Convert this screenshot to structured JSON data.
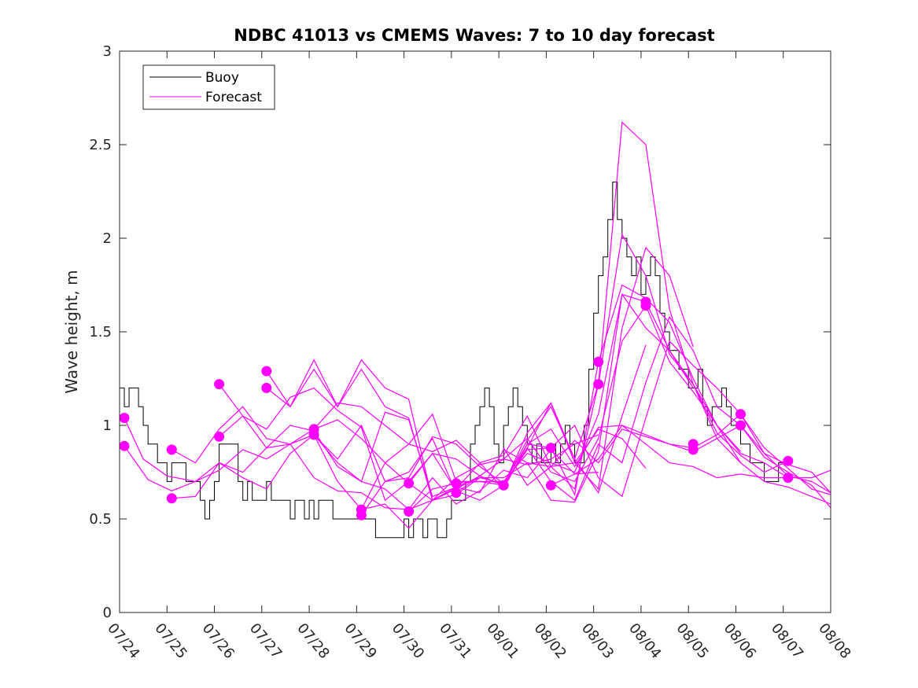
{
  "chart_data": {
    "type": "line",
    "title": "NDBC 41013 vs CMEMS Waves: 7 to 10 day forecast",
    "xlabel": "",
    "ylabel": "Wave height, m",
    "x_ticks": [
      "07/24",
      "07/25",
      "07/26",
      "07/27",
      "07/28",
      "07/29",
      "07/30",
      "07/31",
      "08/01",
      "08/02",
      "08/03",
      "08/04",
      "08/05",
      "08/06",
      "08/07",
      "08/08"
    ],
    "xlim_days": [
      0,
      15
    ],
    "ylim": [
      0,
      3
    ],
    "y_ticks": [
      "0",
      "0.5",
      "1",
      "1.5",
      "2",
      "2.5",
      "3"
    ],
    "grid": false,
    "legend": {
      "placement": "top-left",
      "entries": [
        "Buoy",
        "Forecast"
      ]
    },
    "colors": {
      "buoy": "#000000",
      "forecast": "#ff00ff"
    },
    "series": [
      {
        "name": "Buoy",
        "x": [
          0,
          0.1,
          0.2,
          0.3,
          0.4,
          0.5,
          0.6,
          0.7,
          0.8,
          0.9,
          1.0,
          1.1,
          1.2,
          1.3,
          1.4,
          1.5,
          1.6,
          1.7,
          1.8,
          1.9,
          2.0,
          2.1,
          2.2,
          2.3,
          2.4,
          2.5,
          2.6,
          2.7,
          2.8,
          2.9,
          3.0,
          3.1,
          3.2,
          3.3,
          3.4,
          3.5,
          3.6,
          3.7,
          3.8,
          3.9,
          4.0,
          4.1,
          4.2,
          4.3,
          4.4,
          4.5,
          4.6,
          4.7,
          4.8,
          4.9,
          5.0,
          5.1,
          5.2,
          5.3,
          5.4,
          5.5,
          5.6,
          5.7,
          5.8,
          5.9,
          6.0,
          6.1,
          6.2,
          6.3,
          6.4,
          6.5,
          6.6,
          6.7,
          6.8,
          6.9,
          7.0,
          7.1,
          7.2,
          7.3,
          7.4,
          7.5,
          7.6,
          7.7,
          7.8,
          7.9,
          8.0,
          8.1,
          8.2,
          8.3,
          8.4,
          8.5,
          8.6,
          8.7,
          8.8,
          8.9,
          9.0,
          9.1,
          9.2,
          9.3,
          9.4,
          9.5,
          9.6,
          9.7,
          9.8,
          9.9,
          10.0,
          10.1,
          10.2,
          10.3,
          10.4,
          10.5,
          10.6,
          10.7,
          10.8,
          10.9,
          11.0,
          11.1,
          11.2,
          11.3,
          11.4,
          11.5,
          11.6,
          11.7,
          11.8,
          11.9,
          12.0,
          12.1,
          12.2,
          12.3,
          12.4,
          12.5,
          12.6,
          12.7,
          12.8,
          12.9,
          13.0,
          13.1,
          13.2,
          13.3,
          13.4,
          13.5,
          13.6,
          13.7,
          13.8,
          13.9,
          14.0,
          14.1,
          14.2
        ],
        "values": [
          1.2,
          1.1,
          1.2,
          1.2,
          1.1,
          1.0,
          0.9,
          0.9,
          0.8,
          0.8,
          0.7,
          0.8,
          0.8,
          0.8,
          0.7,
          0.7,
          0.7,
          0.6,
          0.5,
          0.6,
          0.7,
          0.9,
          0.9,
          0.9,
          0.9,
          0.7,
          0.6,
          0.7,
          0.6,
          0.6,
          0.6,
          0.7,
          0.6,
          0.6,
          0.6,
          0.6,
          0.5,
          0.6,
          0.6,
          0.5,
          0.6,
          0.5,
          0.6,
          0.6,
          0.6,
          0.5,
          0.5,
          0.5,
          0.5,
          0.5,
          0.5,
          0.5,
          0.5,
          0.5,
          0.4,
          0.4,
          0.4,
          0.4,
          0.4,
          0.4,
          0.5,
          0.4,
          0.5,
          0.5,
          0.4,
          0.5,
          0.5,
          0.4,
          0.4,
          0.5,
          0.6,
          0.6,
          0.6,
          0.7,
          0.9,
          1.0,
          1.1,
          1.2,
          1.1,
          0.9,
          0.8,
          1.0,
          1.1,
          1.2,
          1.1,
          1.0,
          0.9,
          0.8,
          0.9,
          0.8,
          0.8,
          0.9,
          0.8,
          0.9,
          1.0,
          0.9,
          0.8,
          0.8,
          1.0,
          1.3,
          1.6,
          1.8,
          1.9,
          2.1,
          2.3,
          2.1,
          2.0,
          1.9,
          1.8,
          1.9,
          1.7,
          1.8,
          1.9,
          1.8,
          1.6,
          1.5,
          1.4,
          1.4,
          1.3,
          1.3,
          1.2,
          1.2,
          1.3,
          1.1,
          1.0,
          1.1,
          1.1,
          1.2,
          1.1,
          1.0,
          1.0,
          0.9,
          0.9,
          0.8,
          0.8,
          0.8,
          0.7,
          0.7,
          0.7,
          0.8,
          0.8,
          0.8,
          0.8
        ]
      },
      {
        "name": "Forecast",
        "x": [
          0.1,
          0.5,
          1.0,
          1.6,
          2.1,
          2.6,
          3.1,
          3.6,
          4.1,
          4.6,
          5.1,
          5.6,
          6.1,
          6.6,
          7.1,
          7.6,
          8.1,
          8.6,
          9.1,
          9.6,
          10.1
        ],
        "values": [
          1.04,
          0.82,
          0.73,
          0.7,
          0.76,
          0.87,
          0.82,
          0.9,
          0.72,
          0.65,
          0.64,
          0.56,
          0.55,
          0.72,
          0.58,
          0.65,
          0.76,
          0.72,
          0.87,
          0.74,
          0.75
        ]
      },
      {
        "name": "Forecast",
        "x": [
          0.1,
          0.6,
          1.1,
          1.6,
          2.1,
          2.6,
          3.1,
          3.6,
          4.1,
          4.6,
          5.1,
          5.6,
          6.1,
          6.6,
          7.1,
          7.6,
          8.1,
          8.6,
          9.1,
          9.6,
          10.1
        ],
        "values": [
          0.89,
          0.71,
          0.65,
          0.7,
          0.8,
          0.72,
          0.66,
          0.85,
          0.95,
          0.7,
          0.55,
          0.58,
          0.45,
          0.6,
          0.72,
          0.79,
          0.82,
          0.79,
          0.82,
          0.9,
          0.95
        ]
      },
      {
        "name": "Forecast",
        "x": [
          1.1,
          1.6,
          2.1,
          2.6,
          3.1,
          3.6,
          4.1,
          4.6,
          5.1,
          5.6,
          6.1,
          6.6,
          7.1,
          7.6,
          8.1,
          8.6,
          9.1,
          9.6,
          10.1,
          10.6,
          11.1
        ],
        "values": [
          0.87,
          0.8,
          0.98,
          1.1,
          0.93,
          0.9,
          0.95,
          0.8,
          0.7,
          0.66,
          0.55,
          0.6,
          0.67,
          0.72,
          0.72,
          0.8,
          0.78,
          0.8,
          0.98,
          0.93,
          0.77
        ]
      },
      {
        "name": "Forecast",
        "x": [
          1.1,
          1.6,
          2.1,
          2.6,
          3.1,
          3.6,
          4.1,
          4.6,
          5.1,
          5.6,
          6.1,
          6.6,
          7.1,
          7.6,
          8.1,
          8.6,
          9.1,
          9.6,
          10.1,
          10.6,
          11.1
        ],
        "values": [
          0.61,
          0.62,
          0.8,
          0.75,
          0.88,
          0.9,
          0.98,
          1.03,
          0.93,
          0.8,
          0.69,
          0.85,
          0.82,
          0.73,
          0.68,
          0.96,
          1.12,
          0.82,
          0.64,
          1.05,
          1.43
        ]
      },
      {
        "name": "Forecast",
        "x": [
          2.1,
          2.6,
          3.1,
          3.6,
          4.1,
          4.6,
          5.1,
          5.6,
          6.1,
          6.6,
          7.1,
          7.6,
          8.1,
          8.6,
          9.1,
          9.6,
          10.1,
          10.6,
          11.1,
          11.6,
          12.1
        ],
        "values": [
          1.22,
          1.05,
          0.98,
          1.15,
          1.2,
          1.08,
          0.99,
          0.6,
          0.7,
          0.85,
          0.65,
          0.6,
          0.68,
          0.88,
          1.12,
          0.8,
          0.66,
          1.52,
          1.95,
          1.8,
          1.42
        ]
      },
      {
        "name": "Forecast",
        "x": [
          2.1,
          2.6,
          3.1,
          3.6,
          4.1,
          4.6,
          5.1,
          5.6,
          6.1,
          6.6,
          7.1,
          7.6,
          8.1,
          8.6,
          9.1,
          9.6,
          10.1,
          10.6,
          11.1,
          11.6,
          12.1
        ],
        "values": [
          0.94,
          1.05,
          0.88,
          1.0,
          0.97,
          0.78,
          0.7,
          1.07,
          1.03,
          0.62,
          0.67,
          0.64,
          0.87,
          0.8,
          0.6,
          0.59,
          0.86,
          1.7,
          1.52,
          1.4,
          1.2
        ]
      },
      {
        "name": "Forecast",
        "x": [
          3.1,
          3.6,
          4.1,
          4.6,
          5.1,
          5.6,
          6.1,
          6.6,
          7.1,
          7.6,
          8.1,
          8.6,
          9.1,
          9.6,
          10.1,
          10.6,
          11.1,
          11.6,
          12.1,
          12.6,
          13.1
        ],
        "values": [
          1.29,
          1.1,
          1.35,
          1.1,
          1.35,
          1.2,
          1.14,
          0.6,
          0.63,
          0.72,
          0.69,
          0.92,
          1.1,
          0.82,
          1.22,
          2.62,
          2.5,
          1.62,
          1.22,
          0.93,
          0.8
        ]
      },
      {
        "name": "Forecast",
        "x": [
          3.1,
          3.6,
          4.1,
          4.6,
          5.1,
          5.6,
          6.1,
          6.6,
          7.1,
          7.6,
          8.1,
          8.6,
          9.1,
          9.6,
          10.1,
          10.6,
          11.1,
          11.6,
          12.1,
          12.6,
          13.1
        ],
        "values": [
          1.2,
          1.1,
          1.3,
          1.1,
          1.3,
          1.1,
          1.04,
          0.6,
          0.66,
          0.8,
          0.66,
          0.9,
          0.88,
          0.63,
          1.34,
          1.75,
          1.68,
          1.55,
          1.25,
          1.0,
          0.86
        ]
      },
      {
        "name": "Forecast",
        "x": [
          4.1,
          4.6,
          5.1,
          5.6,
          6.1,
          6.6,
          7.1,
          7.6,
          8.1,
          8.6,
          9.1,
          9.6,
          10.1,
          10.6,
          11.1,
          11.6,
          12.1,
          12.6,
          13.1,
          13.6,
          14.1
        ],
        "values": [
          0.98,
          1.12,
          1.1,
          1.0,
          0.9,
          0.86,
          0.92,
          0.8,
          0.84,
          1.05,
          0.78,
          0.66,
          1.22,
          2.02,
          1.8,
          1.38,
          1.22,
          0.96,
          0.84,
          0.75,
          0.81
        ]
      },
      {
        "name": "Forecast",
        "x": [
          4.1,
          4.6,
          5.1,
          5.6,
          6.1,
          6.6,
          7.1,
          7.6,
          8.1,
          8.6,
          9.1,
          9.6,
          10.1,
          10.6,
          11.1,
          11.6,
          12.1,
          12.6,
          13.1,
          13.6,
          14.1
        ],
        "values": [
          0.95,
          0.82,
          1.0,
          0.7,
          0.72,
          0.94,
          0.9,
          0.78,
          0.69,
          0.9,
          0.98,
          0.78,
          0.99,
          1.0,
          0.9,
          0.8,
          0.78,
          0.72,
          0.74,
          0.72,
          0.72
        ]
      },
      {
        "name": "Forecast",
        "x": [
          5.1,
          5.6,
          6.1,
          6.6,
          7.1,
          7.6,
          8.1,
          8.6,
          9.1,
          9.6,
          10.1,
          10.6,
          11.1,
          11.6,
          12.1,
          12.6,
          13.1,
          13.6,
          14.1,
          14.6,
          15.0
        ],
        "values": [
          0.55,
          0.8,
          0.9,
          1.06,
          0.7,
          0.7,
          0.7,
          0.85,
          0.8,
          0.75,
          1.06,
          1.7,
          1.66,
          1.4,
          1.22,
          1.0,
          0.85,
          0.8,
          0.72,
          0.72,
          0.76
        ]
      },
      {
        "name": "Forecast",
        "x": [
          5.1,
          5.6,
          6.1,
          6.6,
          7.1,
          7.6,
          8.1,
          8.6,
          9.1,
          9.6,
          10.1,
          10.6,
          11.1,
          11.6,
          12.1,
          12.6,
          13.1,
          13.6,
          14.1,
          14.6,
          15.0
        ],
        "values": [
          0.52,
          0.7,
          0.75,
          0.93,
          0.64,
          0.73,
          0.82,
          0.93,
          0.75,
          0.7,
          0.93,
          1.45,
          1.64,
          1.34,
          1.18,
          1.0,
          0.8,
          0.7,
          0.67,
          0.62,
          0.58
        ]
      },
      {
        "name": "Forecast",
        "x": [
          6.1,
          6.6,
          7.1,
          7.6,
          8.1,
          8.6,
          9.1,
          9.6,
          10.1,
          10.6,
          11.1,
          11.6,
          12.1,
          12.6,
          13.1,
          13.6,
          14.1,
          14.6,
          15.0
        ],
        "values": [
          0.69,
          0.6,
          0.66,
          0.73,
          0.68,
          0.87,
          0.88,
          1.0,
          0.72,
          0.62,
          1.04,
          1.45,
          1.32,
          1.2,
          1.06,
          0.88,
          0.77,
          0.66,
          0.63
        ]
      },
      {
        "name": "Forecast",
        "x": [
          6.1,
          6.6,
          7.1,
          7.6,
          8.1,
          8.6,
          9.1,
          9.6,
          10.1,
          10.6,
          11.1,
          11.6,
          12.1,
          12.6,
          13.1,
          13.6,
          14.1,
          14.6,
          15.0
        ],
        "values": [
          0.54,
          0.66,
          0.69,
          0.7,
          0.68,
          0.88,
          0.7,
          0.6,
          0.9,
          0.8,
          1.23,
          1.58,
          1.4,
          1.1,
          1.0,
          0.83,
          0.75,
          0.68,
          0.56
        ]
      },
      {
        "name": "Forecast",
        "x": [
          8.1,
          8.6,
          9.1,
          9.6,
          10.1,
          10.6,
          11.1,
          11.6,
          12.1,
          12.6,
          13.1,
          13.6,
          14.1,
          14.6,
          15.0
        ],
        "values": [
          0.88,
          0.68,
          0.78,
          0.92,
          0.8,
          0.98,
          0.94,
          0.9,
          0.86,
          0.93,
          1.0,
          0.85,
          0.79,
          0.75,
          0.64
        ]
      },
      {
        "name": "Forecast",
        "x": [
          9.1,
          9.6,
          10.1,
          10.6,
          11.1,
          11.6,
          12.1,
          12.6,
          13.1,
          13.6,
          14.1,
          14.6,
          15.0
        ],
        "values": [
          0.68,
          0.74,
          0.82,
          1.0,
          0.95,
          0.9,
          0.88,
          0.95,
          1.06,
          0.85,
          0.73,
          0.7,
          0.64
        ]
      }
    ],
    "markers": {
      "x": [
        0.1,
        0.1,
        1.1,
        1.1,
        2.1,
        2.1,
        3.1,
        3.1,
        4.1,
        4.1,
        5.1,
        5.1,
        6.1,
        6.1,
        7.1,
        7.1,
        8.1,
        8.1,
        9.1,
        9.1,
        10.1,
        10.1,
        11.1,
        11.1,
        12.1,
        12.1,
        13.1,
        13.1,
        14.1,
        14.1
      ],
      "values": [
        1.04,
        0.89,
        0.87,
        0.61,
        1.22,
        0.94,
        1.29,
        1.2,
        0.98,
        0.95,
        0.55,
        0.52,
        0.69,
        0.54,
        0.69,
        0.64,
        0.68,
        0.68,
        0.88,
        0.68,
        1.34,
        1.22,
        1.66,
        1.64,
        0.9,
        0.87,
        1.06,
        1.0,
        0.81,
        0.72
      ]
    }
  }
}
